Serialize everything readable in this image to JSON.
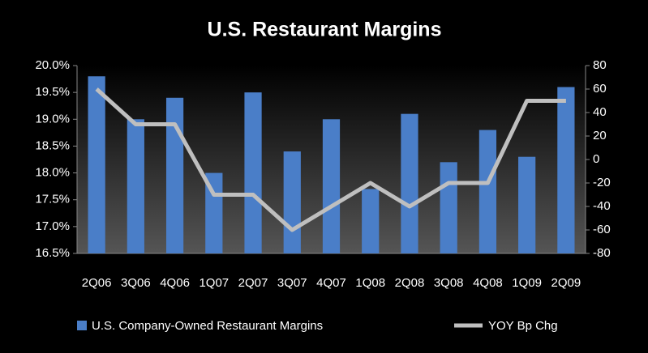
{
  "chart_data": {
    "type": "bar-line",
    "title": "U.S. Restaurant Margins",
    "categories": [
      "2Q06",
      "3Q06",
      "4Q06",
      "1Q07",
      "2Q07",
      "3Q07",
      "4Q07",
      "1Q08",
      "2Q08",
      "3Q08",
      "4Q08",
      "1Q09",
      "2Q09"
    ],
    "series": [
      {
        "name": "U.S. Company-Owned Restaurant Margins",
        "type": "bar",
        "color": "#4a7ec8",
        "values": [
          19.8,
          19.0,
          19.4,
          18.0,
          19.5,
          18.4,
          19.0,
          17.7,
          19.1,
          18.2,
          18.8,
          18.3,
          19.6
        ]
      },
      {
        "name": "YOY Bp Chg",
        "type": "line",
        "axis": "y2",
        "color": "#bfbfbf",
        "values": [
          60,
          30,
          30,
          -30,
          -30,
          -60,
          -40,
          -20,
          -40,
          -20,
          -20,
          50,
          50
        ]
      }
    ],
    "ylim": [
      16.5,
      20.0
    ],
    "yticks": [
      {
        "value": 16.5,
        "label": "16.5%"
      },
      {
        "value": 17.0,
        "label": "17.0%"
      },
      {
        "value": 17.5,
        "label": "17.5%"
      },
      {
        "value": 18.0,
        "label": "18.0%"
      },
      {
        "value": 18.5,
        "label": "18.5%"
      },
      {
        "value": 19.0,
        "label": "19.0%"
      },
      {
        "value": 19.5,
        "label": "19.5%"
      },
      {
        "value": 20.0,
        "label": "20.0%"
      }
    ],
    "y2lim": [
      -80,
      80
    ],
    "y2ticks": [
      -80,
      -60,
      -40,
      -20,
      0,
      20,
      40,
      60,
      80
    ]
  }
}
